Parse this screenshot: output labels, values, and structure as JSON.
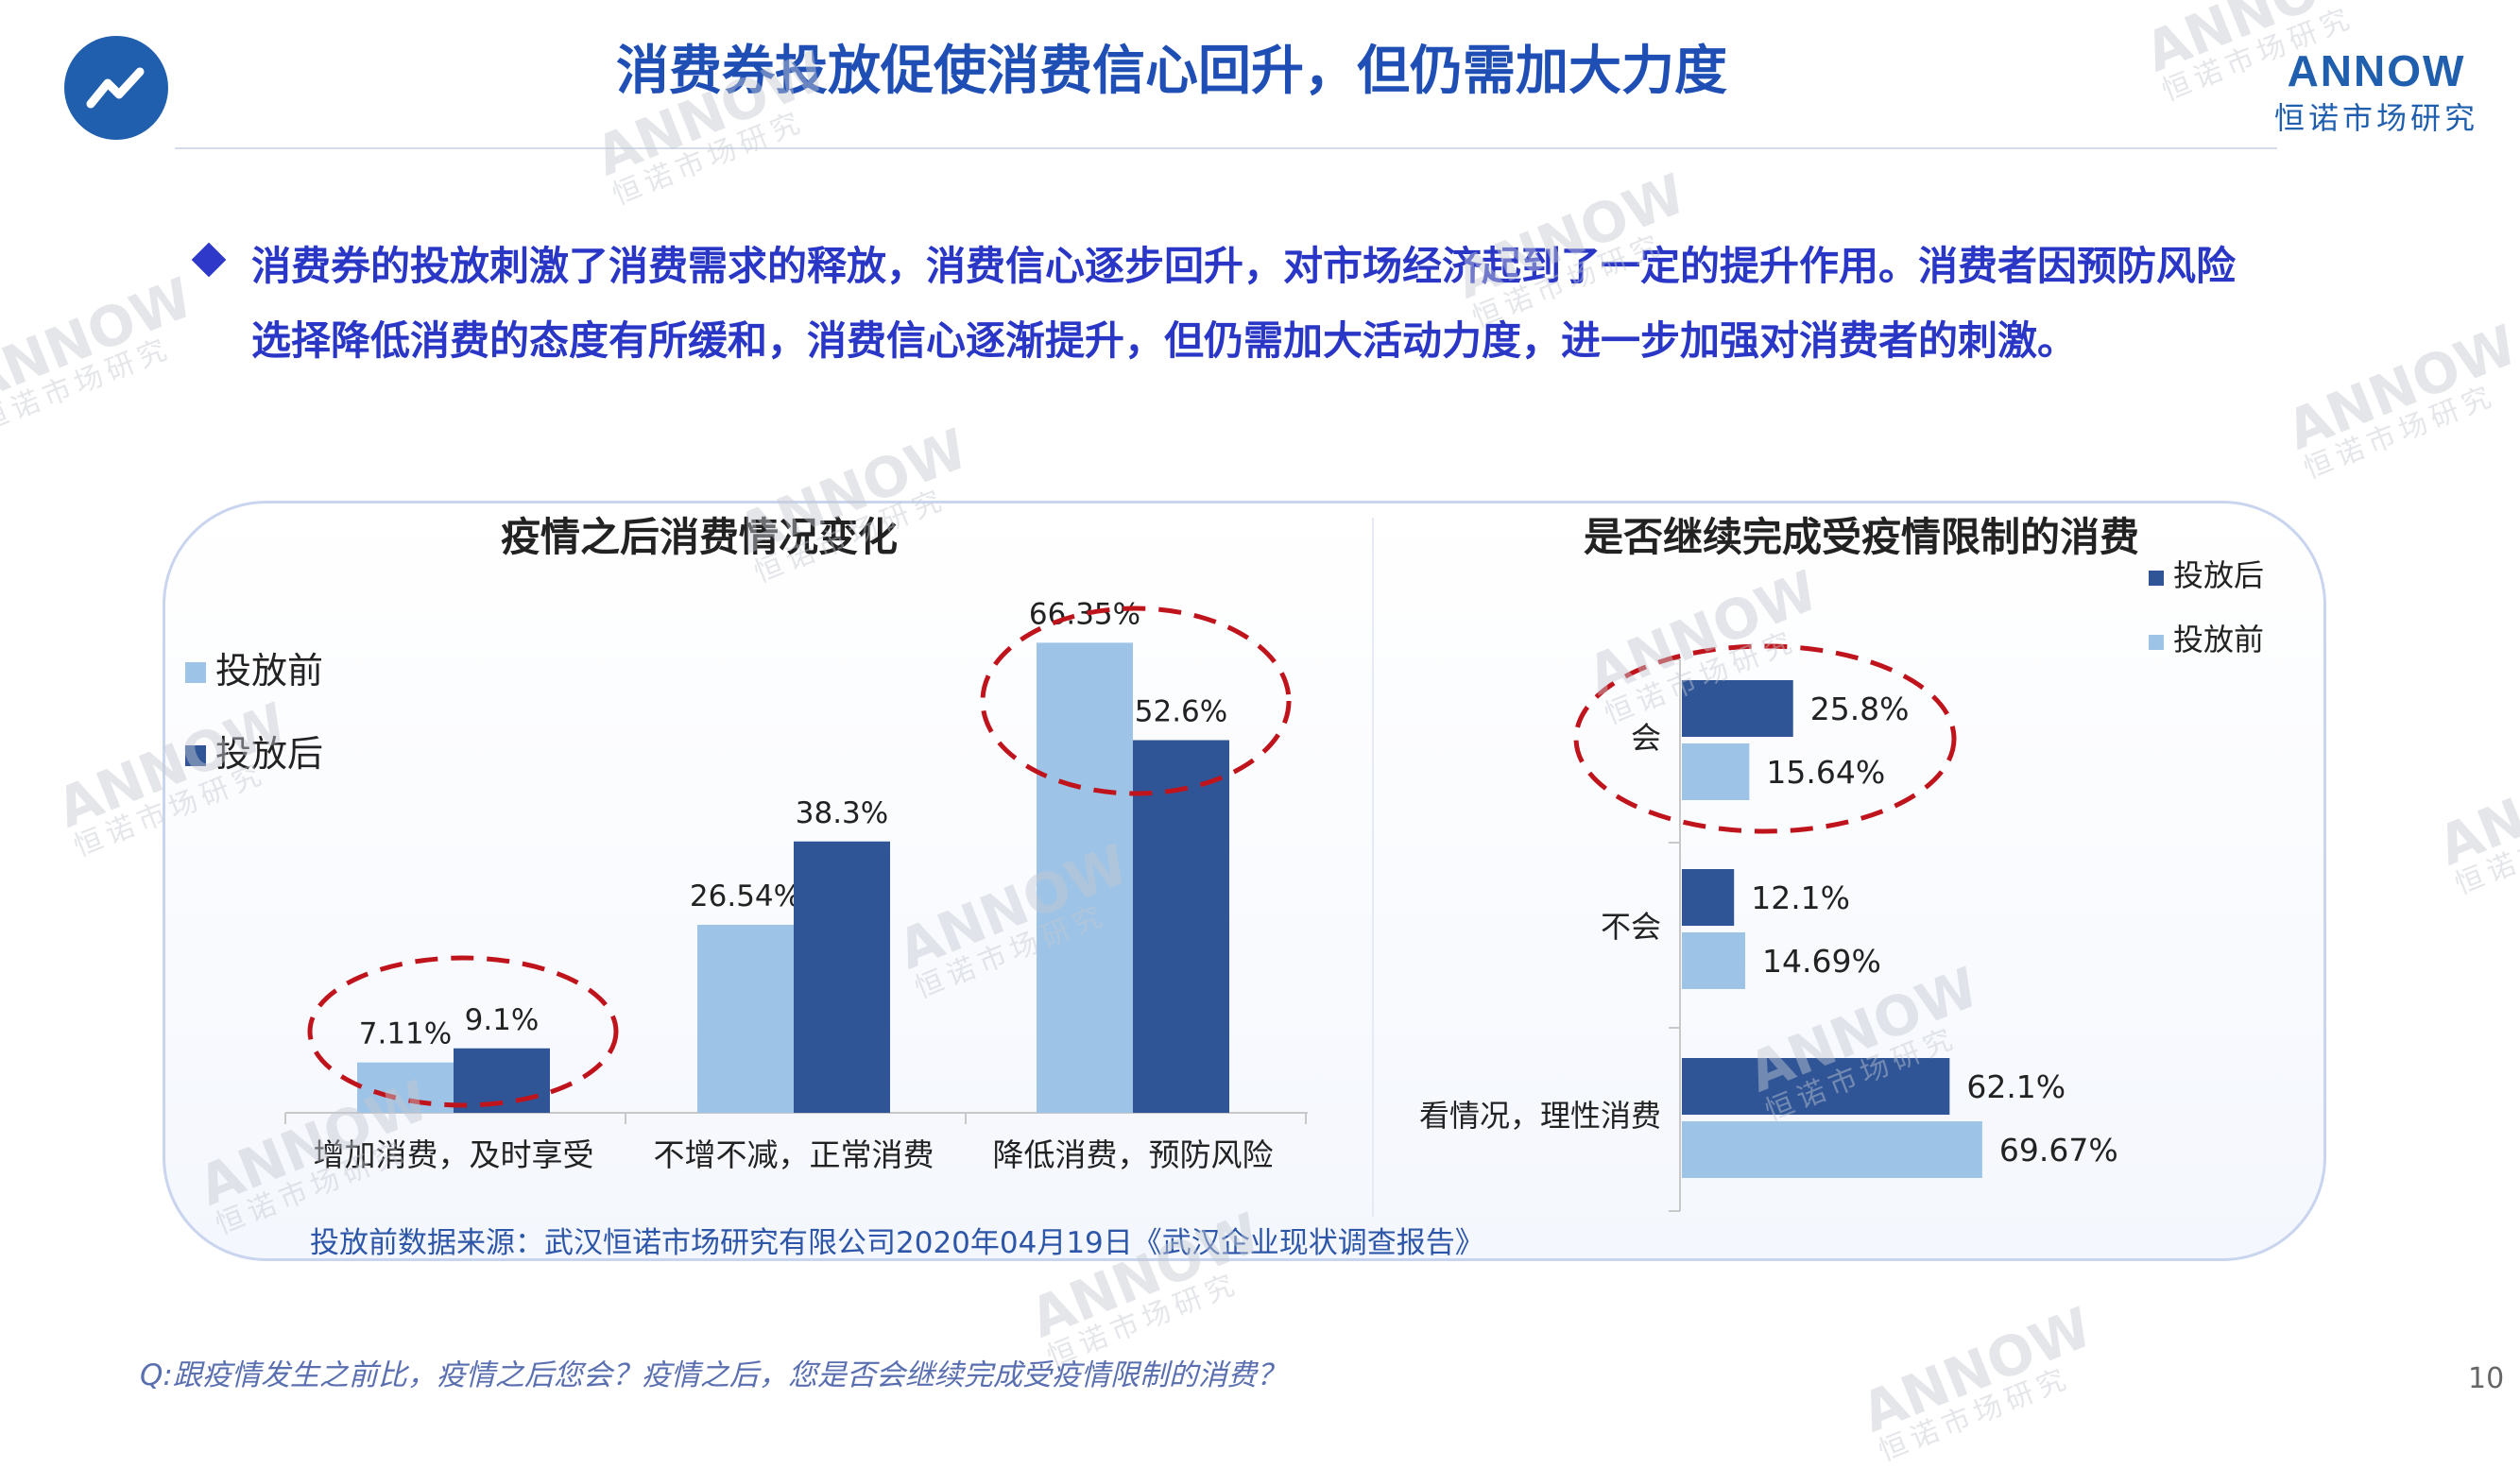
{
  "header": {
    "title": "消费券投放促使消费信心回升，但仍需加大力度",
    "brand_name": "ANNOW",
    "brand_sub": "恒诺市场研究",
    "logo_icon": "trend-line-icon"
  },
  "summary": {
    "line1": "消费券的投放刺激了消费需求的释放，消费信心逐步回升，对市场经济起到了一定的提升作用。消费者因预防风险",
    "line2": "选择降低消费的态度有所缓和，消费信心逐渐提升，但仍需加大活动力度，进一步加强对消费者的刺激。"
  },
  "colors": {
    "before": "#9dc3e6",
    "after": "#2f5597",
    "highlight": "#c0141c",
    "title_blue": "#1f4fb5",
    "text_blue": "#2a37c6"
  },
  "chart_data": [
    {
      "type": "bar",
      "title": "疫情之后消费情况变化",
      "categories": [
        "增加消费，及时享受",
        "不增不减，正常消费",
        "降低消费，预防风险"
      ],
      "series": [
        {
          "name": "投放前",
          "values": [
            7.11,
            26.54,
            66.35
          ],
          "labels": [
            "7.11%",
            "26.54%",
            "66.35%"
          ]
        },
        {
          "name": "投放后",
          "values": [
            9.1,
            38.3,
            52.6
          ],
          "labels": [
            "9.1%",
            "38.3%",
            "52.6%"
          ]
        }
      ],
      "ylim": [
        0,
        80
      ],
      "legend_position": "left",
      "grid": false,
      "highlighted_categories": [
        0,
        2
      ]
    },
    {
      "type": "bar",
      "orientation": "horizontal",
      "title": "是否继续完成受疫情限制的消费",
      "categories": [
        "会",
        "不会",
        "看情况，理性消费"
      ],
      "series": [
        {
          "name": "投放后",
          "values": [
            25.8,
            12.1,
            62.1
          ],
          "labels": [
            "25.8%",
            "12.1%",
            "62.1%"
          ]
        },
        {
          "name": "投放前",
          "values": [
            15.64,
            14.69,
            69.67
          ],
          "labels": [
            "15.64%",
            "14.69%",
            "69.67%"
          ]
        }
      ],
      "xlim": [
        0,
        80
      ],
      "legend_position": "top-right",
      "grid": false,
      "highlighted_categories": [
        0
      ]
    }
  ],
  "source_note": "投放前数据来源：武汉恒诺市场研究有限公司2020年04月19日《武汉企业现状调查报告》",
  "footnote": "Q:跟疫情发生之前比，疫情之后您会？疫情之后，您是否会继续完成受疫情限制的消费？",
  "page_number": "10",
  "watermark": {
    "text": "ANNOW",
    "sub": "恒诺市场研究"
  }
}
